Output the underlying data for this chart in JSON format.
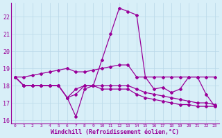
{
  "hours": [
    0,
    1,
    2,
    3,
    4,
    5,
    6,
    7,
    8,
    9,
    10,
    11,
    12,
    13,
    14,
    15,
    16,
    17,
    18,
    19,
    20,
    21,
    22,
    23
  ],
  "line1": [
    18.5,
    18.5,
    18.6,
    18.7,
    18.8,
    18.9,
    19.0,
    18.8,
    18.8,
    18.9,
    19.0,
    19.1,
    19.2,
    19.2,
    18.5,
    18.5,
    18.5,
    18.5,
    18.5,
    18.5,
    18.5,
    18.5,
    18.5,
    18.5
  ],
  "line2": [
    18.5,
    18.0,
    18.0,
    18.0,
    18.0,
    18.0,
    17.3,
    16.2,
    17.8,
    18.0,
    19.5,
    21.0,
    22.5,
    22.3,
    22.1,
    18.5,
    17.8,
    17.9,
    17.6,
    17.8,
    18.5,
    18.5,
    17.5,
    16.8
  ],
  "line3": [
    18.5,
    18.0,
    18.0,
    18.0,
    18.0,
    18.0,
    17.3,
    17.5,
    18.0,
    18.0,
    18.0,
    18.0,
    18.0,
    18.0,
    17.8,
    17.6,
    17.5,
    17.4,
    17.3,
    17.2,
    17.1,
    17.0,
    17.0,
    16.9
  ],
  "line4": [
    18.5,
    18.0,
    18.0,
    18.0,
    18.0,
    18.0,
    17.3,
    17.8,
    18.0,
    18.0,
    17.8,
    17.8,
    17.8,
    17.8,
    17.5,
    17.3,
    17.2,
    17.1,
    17.0,
    16.9,
    16.9,
    16.8,
    16.8,
    16.8
  ],
  "color": "#990099",
  "bg_color": "#d8eff8",
  "grid_color": "#b8d8e8",
  "xlabel": "Windchill (Refroidissement éolien,°C)",
  "ylim": [
    15.8,
    22.8
  ],
  "yticks": [
    16,
    17,
    18,
    19,
    20,
    21,
    22
  ],
  "xlim": [
    -0.5,
    23.5
  ],
  "xticks": [
    0,
    1,
    2,
    3,
    4,
    5,
    6,
    7,
    8,
    9,
    10,
    11,
    12,
    13,
    14,
    15,
    16,
    17,
    18,
    19,
    20,
    21,
    22,
    23
  ]
}
